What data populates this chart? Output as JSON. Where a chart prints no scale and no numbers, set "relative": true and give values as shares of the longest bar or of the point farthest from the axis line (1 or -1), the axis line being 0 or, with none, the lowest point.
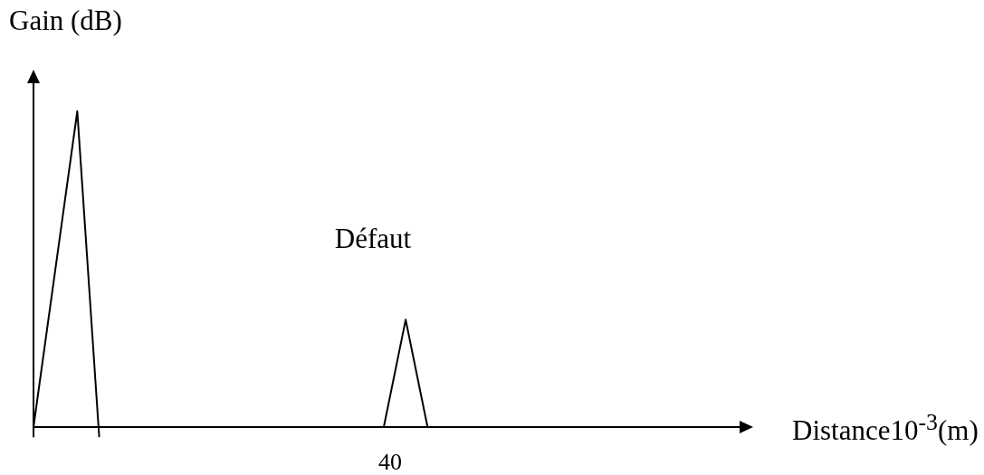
{
  "chart_data": {
    "type": "line",
    "relative": true,
    "xlabel": "Distance10$^{-3}$(m)",
    "ylabel": "Gain (dB)",
    "annotations": [
      "Défaut",
      "40"
    ],
    "categories": [
      null,
      null,
      null,
      null,
      null,
      null,
      null,
      null,
      null,
      null,
      null,
      null,
      null,
      null,
      null,
      null,
      null,
      null,
      null,
      null,
      null,
      null,
      null,
      null,
      null,
      null,
      null,
      null,
      null,
      null,
      null,
      null,
      null,
      null,
      null,
      null,
      null,
      null,
      null,
      null,
      null,
      null,
      null,
      null,
      null,
      null,
      null,
      null,
      null,
      null,
      null,
      null,
      null,
      null,
      null,
      null,
      null,
      null,
      null,
      null,
      null,
      null,
      null,
      null,
      null,
      null
    ],
    "series": [
      {
        "color": "#000000",
        "values": [
          0,
          null,
          null,
          null,
          1,
          null,
          -0.03,
          null,
          null,
          null,
          null,
          null,
          null,
          null,
          null,
          null,
          null,
          null,
          null,
          null,
          null,
          null,
          null,
          null,
          null,
          null,
          null,
          null,
          null,
          null,
          null,
          null,
          null,
          null,
          null,
          null,
          null,
          null,
          null,
          null,
          null,
          null,
          null,
          null,
          null,
          null,
          null,
          null,
          null,
          null,
          null,
          null,
          null,
          null,
          null,
          null,
          null,
          null,
          null,
          null,
          null,
          null,
          null,
          null,
          null,
          null
        ]
      },
      {
        "color": "#000000",
        "values": [
          null,
          null,
          null,
          null,
          null,
          null,
          null,
          null,
          null,
          null,
          null,
          null,
          null,
          null,
          null,
          null,
          null,
          null,
          null,
          null,
          null,
          null,
          null,
          null,
          null,
          null,
          null,
          null,
          null,
          null,
          null,
          null,
          0,
          null,
          0.34,
          null,
          0,
          null,
          null,
          null,
          null,
          null,
          null,
          null,
          null,
          null,
          null,
          null,
          null,
          null,
          null,
          null,
          null,
          null,
          null,
          null,
          null,
          null,
          null,
          null,
          null,
          null,
          null,
          null,
          null,
          null
        ]
      }
    ],
    "marker": "none",
    "line_style": "solid"
  }
}
